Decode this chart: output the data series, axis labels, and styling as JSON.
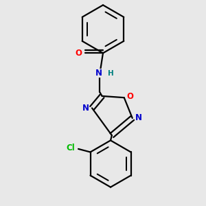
{
  "bg_color": "#e8e8e8",
  "bond_color": "#000000",
  "bond_width": 1.6,
  "atom_colors": {
    "O_carbonyl": "#ff0000",
    "N_amide": "#0000cc",
    "H_amide": "#008080",
    "O_ring": "#ff0000",
    "N_ring": "#0000cc",
    "Cl": "#00bb00",
    "C": "#000000"
  },
  "font_size_atoms": 8.5,
  "fig_width": 3.0,
  "fig_height": 3.0,
  "dpi": 100,
  "xlim": [
    -1.2,
    1.2
  ],
  "ylim": [
    -1.55,
    1.65
  ]
}
